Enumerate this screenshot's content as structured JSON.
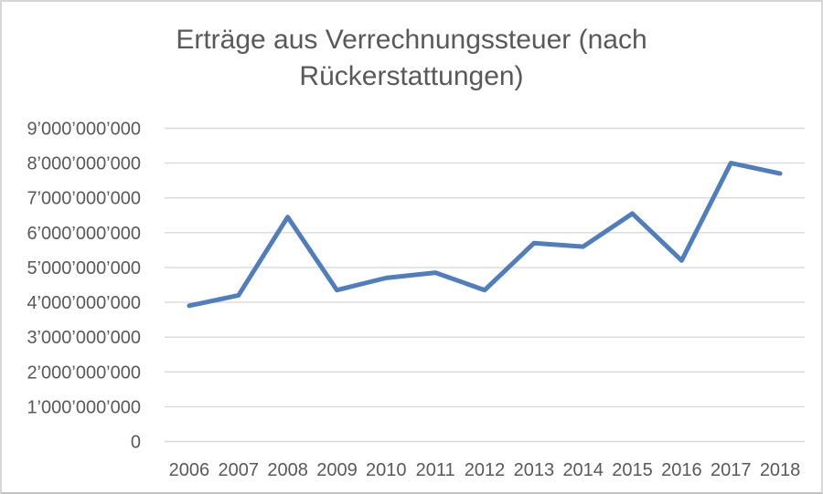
{
  "chart_data": {
    "type": "line",
    "title": "Erträge aus Verrechnungssteuer (nach Rückerstattungen)",
    "categories": [
      "2006",
      "2007",
      "2008",
      "2009",
      "2010",
      "2011",
      "2012",
      "2013",
      "2014",
      "2015",
      "2016",
      "2017",
      "2018"
    ],
    "series": [
      {
        "name": "Erträge aus Verrechnungssteuer (nach Rückerstattungen)",
        "values": [
          3900000000,
          4200000000,
          6450000000,
          4350000000,
          4700000000,
          4850000000,
          4350000000,
          5700000000,
          5600000000,
          6550000000,
          5200000000,
          8000000000,
          7700000000
        ]
      }
    ],
    "xlabel": "",
    "ylabel": "",
    "ylim": [
      0,
      9000000000
    ],
    "y_tick_values": [
      0,
      1000000000,
      2000000000,
      3000000000,
      4000000000,
      5000000000,
      6000000000,
      7000000000,
      8000000000,
      9000000000
    ],
    "y_tick_labels": [
      "0",
      "1’000’000’000",
      "2’000’000’000",
      "3’000’000’000",
      "4’000’000’000",
      "5’000’000’000",
      "6’000’000’000",
      "7’000’000’000",
      "8’000’000’000",
      "9’000’000’000"
    ],
    "grid": "horizontal",
    "legend_position": "none",
    "colors": {
      "line": "#4f7dbd",
      "gridline": "#d9d9d9",
      "text": "#595959",
      "background": "#ffffff"
    }
  }
}
